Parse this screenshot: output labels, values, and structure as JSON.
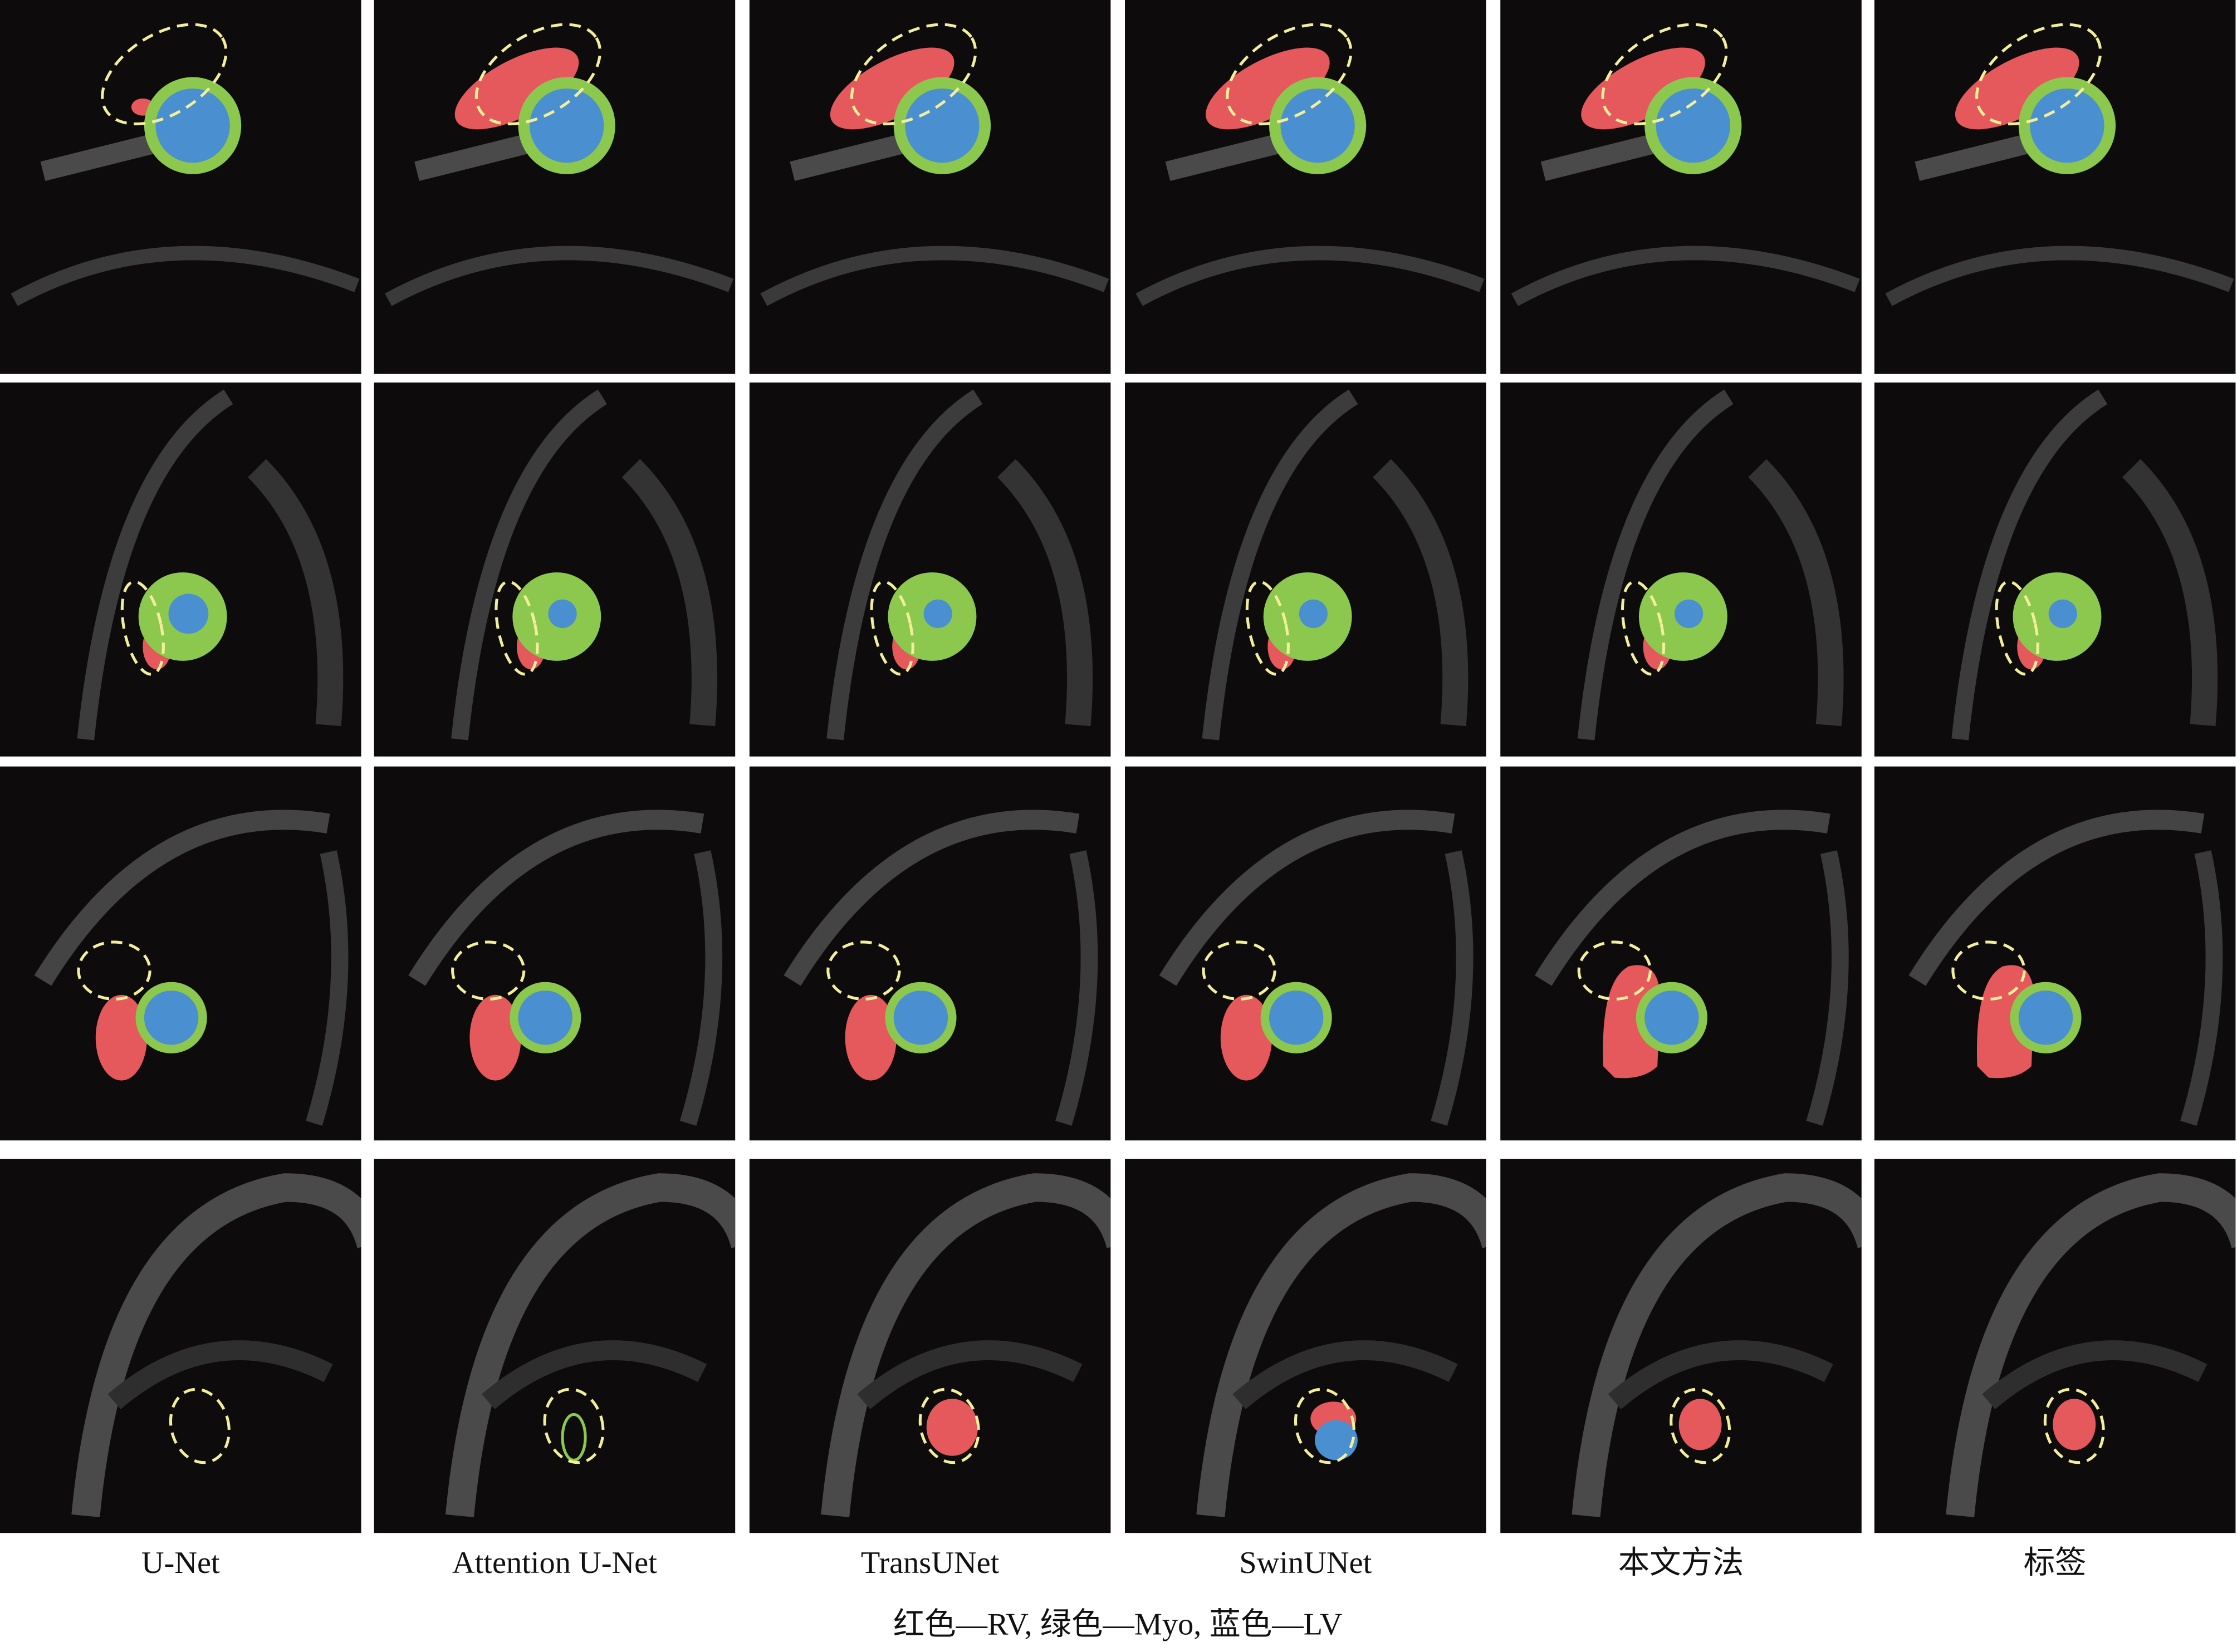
{
  "figure": {
    "columns": [
      "U-Net",
      "Attention U-Net",
      "TransUNet",
      "SwinUNet",
      "本文方法",
      "标签"
    ],
    "caption": "红色—RV, 绿色—Myo, 蓝色—LV"
  }
}
